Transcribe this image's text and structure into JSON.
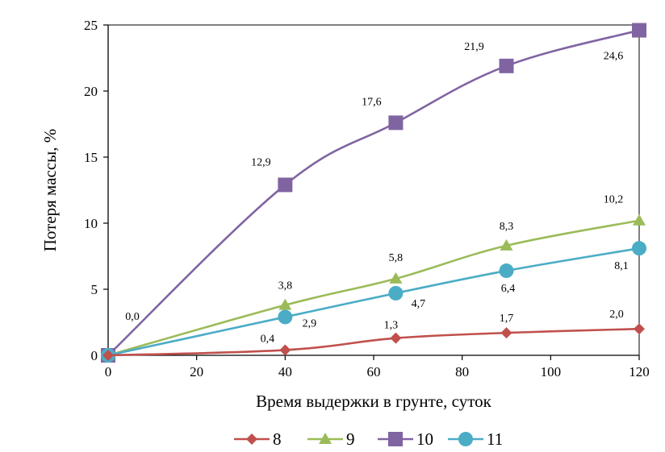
{
  "chart_data": {
    "type": "line",
    "xlabel": "Время выдержки в грунте, суток",
    "ylabel": "Потеря массы, %",
    "xlim": [
      0,
      120
    ],
    "ylim": [
      0,
      25
    ],
    "x_ticks": [
      0,
      20,
      40,
      60,
      80,
      100,
      120
    ],
    "y_ticks": [
      0,
      5,
      10,
      15,
      20,
      25
    ],
    "grid": false,
    "legend_position": "bottom",
    "x": [
      0,
      40,
      65,
      90,
      120
    ],
    "series": [
      {
        "name": "8",
        "marker": "diamond",
        "color": "#c0504d",
        "values": [
          0,
          0.4,
          1.3,
          1.7,
          2.0
        ],
        "labels": [
          "0,0",
          "0,4",
          "1,3",
          "1,7",
          "2,0"
        ]
      },
      {
        "name": "9",
        "marker": "triangle",
        "color": "#9bbb59",
        "values": [
          0,
          3.8,
          5.8,
          8.3,
          10.2
        ],
        "labels": [
          "",
          "3,8",
          "5,8",
          "8,3",
          "10,2"
        ]
      },
      {
        "name": "10",
        "marker": "square",
        "color": "#8064a2",
        "values": [
          0,
          12.9,
          17.6,
          21.9,
          24.6
        ],
        "labels": [
          "",
          "12,9",
          "17,6",
          "21,9",
          "24,6"
        ]
      },
      {
        "name": "11",
        "marker": "circle",
        "color": "#4bacc6",
        "values": [
          0,
          2.9,
          4.7,
          6.4,
          8.1
        ],
        "labels": [
          "",
          "2,9",
          "4,7",
          "6,4",
          "8,1"
        ]
      }
    ]
  }
}
